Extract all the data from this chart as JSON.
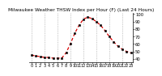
{
  "title": "Milwaukee Weather THSW Index per Hour (F) (Last 24 Hours)",
  "hours": [
    0,
    1,
    2,
    3,
    4,
    5,
    6,
    7,
    8,
    9,
    10,
    11,
    12,
    13,
    14,
    15,
    16,
    17,
    18,
    19,
    20,
    21,
    22,
    23
  ],
  "values": [
    45,
    44,
    43,
    42,
    42,
    41,
    41,
    41,
    48,
    60,
    74,
    85,
    93,
    96,
    94,
    90,
    85,
    78,
    70,
    63,
    57,
    53,
    50,
    48
  ],
  "line_color": "#dd0000",
  "marker_color": "#000000",
  "background_color": "#ffffff",
  "grid_color": "#999999",
  "title_color": "#000000",
  "ylim": [
    36,
    102
  ],
  "ytick_values": [
    40,
    50,
    60,
    70,
    80,
    90,
    100
  ],
  "ytick_labels": [
    "40",
    "50",
    "60",
    "70",
    "80",
    "90",
    "100"
  ],
  "grid_hours": [
    0,
    3,
    6,
    9,
    12,
    15,
    18,
    21
  ],
  "title_fontsize": 4.2,
  "tick_fontsize": 3.8,
  "linewidth": 0.9,
  "markersize": 1.6
}
